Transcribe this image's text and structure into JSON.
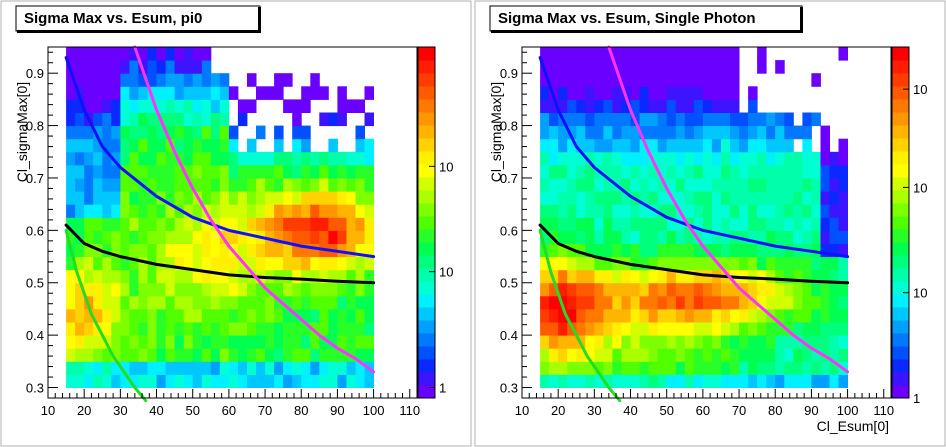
{
  "chart_data": [
    {
      "type": "heatmap",
      "title": "Sigma Max vs. Esum, pi0",
      "xlabel": "",
      "ylabel": "Cl_sigmaMax[0]",
      "xlim": [
        10,
        112
      ],
      "ylim": [
        0.28,
        0.95
      ],
      "x_ticks": [
        "10",
        "20",
        "30",
        "40",
        "50",
        "60",
        "70",
        "80",
        "90",
        "100",
        "110"
      ],
      "y_ticks": [
        "0.3",
        "0.4",
        "0.5",
        "0.6",
        "0.7",
        "0.8",
        "0.9"
      ],
      "z_scale": "log",
      "palette_labels": [
        {
          "label": "10",
          "frac": 0.66
        },
        {
          "label": "10",
          "frac": 0.36
        },
        {
          "label": "1",
          "frac": 0.03
        }
      ],
      "curves": [
        {
          "name": "blue",
          "color": "#1010ff",
          "points": [
            [
              15,
              0.93
            ],
            [
              20,
              0.83
            ],
            [
              25,
              0.76
            ],
            [
              30,
              0.72
            ],
            [
              40,
              0.665
            ],
            [
              50,
              0.625
            ],
            [
              60,
              0.6
            ],
            [
              70,
              0.585
            ],
            [
              80,
              0.57
            ],
            [
              90,
              0.56
            ],
            [
              100,
              0.55
            ]
          ]
        },
        {
          "name": "black",
          "color": "#000000",
          "points": [
            [
              15,
              0.61
            ],
            [
              20,
              0.575
            ],
            [
              25,
              0.56
            ],
            [
              30,
              0.55
            ],
            [
              40,
              0.535
            ],
            [
              50,
              0.525
            ],
            [
              60,
              0.515
            ],
            [
              70,
              0.51
            ],
            [
              80,
              0.507
            ],
            [
              90,
              0.503
            ],
            [
              100,
              0.5
            ]
          ]
        },
        {
          "name": "magenta",
          "color": "#ff33ff",
          "points": [
            [
              34,
              0.95
            ],
            [
              40,
              0.83
            ],
            [
              45,
              0.75
            ],
            [
              50,
              0.68
            ],
            [
              55,
              0.62
            ],
            [
              60,
              0.57
            ],
            [
              65,
              0.53
            ],
            [
              70,
              0.49
            ],
            [
              75,
              0.46
            ],
            [
              80,
              0.43
            ],
            [
              85,
              0.4
            ],
            [
              90,
              0.375
            ],
            [
              95,
              0.355
            ],
            [
              100,
              0.33
            ]
          ]
        },
        {
          "name": "green",
          "color": "#22dd22",
          "points": [
            [
              15,
              0.6
            ],
            [
              18,
              0.52
            ],
            [
              20,
              0.48
            ],
            [
              22,
              0.44
            ],
            [
              25,
              0.4
            ],
            [
              28,
              0.36
            ],
            [
              31,
              0.33
            ],
            [
              34,
              0.3
            ],
            [
              37,
              0.275
            ]
          ]
        }
      ]
    },
    {
      "type": "heatmap",
      "title": "Sigma Max vs. Esum, Single Photon",
      "xlabel": "Cl_Esum[0]",
      "ylabel": "Cl_sigmaMax[0]",
      "xlim": [
        10,
        112
      ],
      "ylim": [
        0.28,
        0.95
      ],
      "x_ticks": [
        "10",
        "20",
        "30",
        "40",
        "50",
        "60",
        "70",
        "80",
        "90",
        "100",
        "110"
      ],
      "y_ticks": [
        "0.3",
        "0.4",
        "0.5",
        "0.6",
        "0.7",
        "0.8",
        "0.9"
      ],
      "z_scale": "log",
      "palette_labels": [
        {
          "label": "10",
          "frac": 0.88
        },
        {
          "label": "10",
          "frac": 0.6
        },
        {
          "label": "10",
          "frac": 0.3
        },
        {
          "label": "1",
          "frac": 0.0
        }
      ],
      "curves": [
        {
          "name": "blue",
          "color": "#1010ff",
          "points": [
            [
              15,
              0.93
            ],
            [
              20,
              0.83
            ],
            [
              25,
              0.76
            ],
            [
              30,
              0.72
            ],
            [
              40,
              0.665
            ],
            [
              50,
              0.625
            ],
            [
              60,
              0.6
            ],
            [
              70,
              0.585
            ],
            [
              80,
              0.57
            ],
            [
              90,
              0.56
            ],
            [
              100,
              0.55
            ]
          ]
        },
        {
          "name": "black",
          "color": "#000000",
          "points": [
            [
              15,
              0.61
            ],
            [
              20,
              0.575
            ],
            [
              25,
              0.56
            ],
            [
              30,
              0.55
            ],
            [
              40,
              0.535
            ],
            [
              50,
              0.525
            ],
            [
              60,
              0.515
            ],
            [
              70,
              0.51
            ],
            [
              80,
              0.507
            ],
            [
              90,
              0.503
            ],
            [
              100,
              0.5
            ]
          ]
        },
        {
          "name": "magenta",
          "color": "#ff33ff",
          "points": [
            [
              34,
              0.95
            ],
            [
              40,
              0.83
            ],
            [
              45,
              0.75
            ],
            [
              50,
              0.68
            ],
            [
              55,
              0.62
            ],
            [
              60,
              0.57
            ],
            [
              65,
              0.53
            ],
            [
              70,
              0.49
            ],
            [
              75,
              0.46
            ],
            [
              80,
              0.43
            ],
            [
              85,
              0.4
            ],
            [
              90,
              0.375
            ],
            [
              95,
              0.355
            ],
            [
              100,
              0.33
            ]
          ]
        },
        {
          "name": "green",
          "color": "#22dd22",
          "points": [
            [
              15,
              0.6
            ],
            [
              18,
              0.52
            ],
            [
              20,
              0.48
            ],
            [
              22,
              0.44
            ],
            [
              25,
              0.4
            ],
            [
              28,
              0.36
            ],
            [
              31,
              0.33
            ],
            [
              34,
              0.3
            ],
            [
              37,
              0.275
            ]
          ]
        }
      ]
    }
  ],
  "palette": [
    "#6a00ff",
    "#3c14ff",
    "#0a28ff",
    "#0050ff",
    "#0078ff",
    "#00a0ff",
    "#00c8ff",
    "#00f0ff",
    "#00ffd2",
    "#00ffaa",
    "#00ff7d",
    "#00ff50",
    "#28ff28",
    "#50ff00",
    "#7dff00",
    "#aaff00",
    "#d2ff00",
    "#ffff00",
    "#fff000",
    "#ffd200",
    "#ffb400",
    "#ff9600",
    "#ff7800",
    "#ff5a00",
    "#ff3c00",
    "#ff1e00",
    "#ff0000"
  ]
}
